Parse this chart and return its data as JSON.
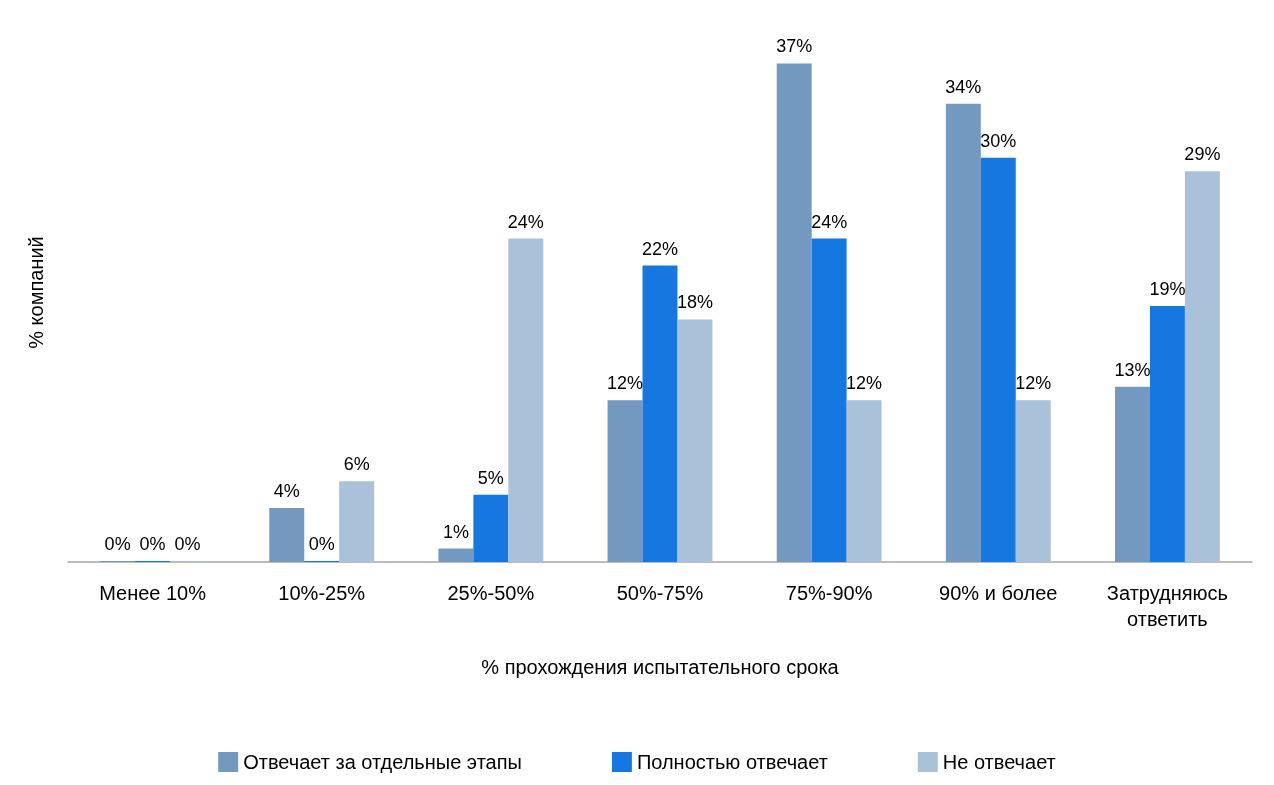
{
  "chart_data": {
    "type": "bar",
    "xlabel": "% прохождения испытательного срока",
    "ylabel": "% компаний",
    "relative": false,
    "categories": [
      "Менее 10%",
      "10%-25%",
      "25%-50%",
      "50%-75%",
      "75%-90%",
      "90% и более",
      "Затрудняюсь ответить"
    ],
    "series": [
      {
        "name": "Отвечает за отдельные этапы",
        "color": "#7399c0",
        "values": [
          0,
          4,
          1,
          12,
          37,
          34,
          13
        ],
        "value_labels": [
          "0%",
          "4%",
          "1%",
          "12%",
          "37%",
          "34%",
          "13%"
        ]
      },
      {
        "name": "Полностью отвечает",
        "color": "#1677e0",
        "values": [
          0,
          0,
          5,
          22,
          24,
          30,
          19
        ],
        "value_labels": [
          "0%",
          "0%",
          "5%",
          "22%",
          "24%",
          "30%",
          "19%"
        ]
      },
      {
        "name": "Не отвечает",
        "color": "#aac2d9",
        "values": [
          0,
          6,
          24,
          18,
          12,
          12,
          29
        ],
        "value_labels": [
          "0%",
          "6%",
          "24%",
          "18%",
          "12%",
          "12%",
          "29%"
        ]
      }
    ],
    "legend": "bottom",
    "grid": false
  }
}
